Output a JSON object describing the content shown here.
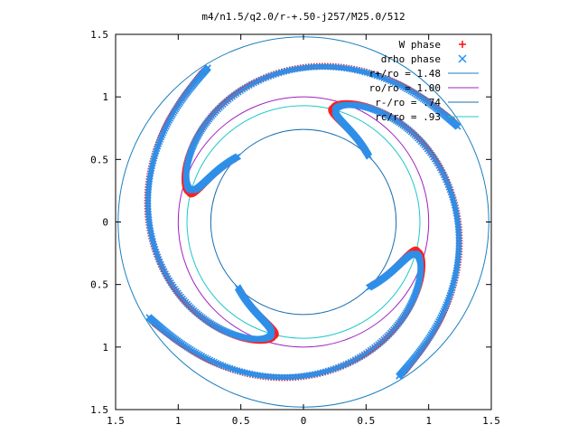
{
  "chart_data": {
    "type": "scatter",
    "title": "m4/n1.5/q2.0/r-+.50-j257/M25.0/512",
    "xlim": [
      -1.5,
      1.5
    ],
    "ylim": [
      -1.5,
      1.5
    ],
    "x_ticks": [
      -1.5,
      -1,
      -0.5,
      0,
      0.5,
      1,
      1.5
    ],
    "x_tick_labels": [
      "1.5",
      "1",
      "0.5",
      "0",
      "0.5",
      "1",
      "1.5"
    ],
    "y_ticks": [
      1.5,
      1,
      0.5,
      0,
      -0.5,
      -1,
      -1.5
    ],
    "y_tick_labels": [
      "1.5",
      "1",
      "0.5",
      "0",
      "0.5",
      "1",
      "1.5"
    ],
    "grid": false,
    "legend_position": "top-right",
    "legend": [
      {
        "label": "W phase",
        "marker": "+",
        "color": "#ff0000"
      },
      {
        "label": "drho phase",
        "marker": "x",
        "color": "#1e90ff"
      },
      {
        "label": "r+/ro = 1.48",
        "marker": "line",
        "color": "#1a7fc0"
      },
      {
        "label": "ro/ro = 1.00",
        "marker": "line",
        "color": "#a020c0"
      },
      {
        "label": "r-/ro = .74",
        "marker": "line",
        "color": "#1a6fb0"
      },
      {
        "label": "rc/ro = .93",
        "marker": "line",
        "color": "#20c8c8"
      }
    ],
    "circles": [
      {
        "name": "r+/ro",
        "radius": 1.48,
        "color": "#1a7fc0"
      },
      {
        "name": "ro/ro",
        "radius": 1.0,
        "color": "#a020c0"
      },
      {
        "name": "r-/ro",
        "radius": 0.74,
        "color": "#1a6fb0"
      },
      {
        "name": "rc/ro",
        "radius": 0.93,
        "color": "#20c8c8"
      }
    ],
    "series": [
      {
        "name": "W phase",
        "color": "#ff2020",
        "arms": 4,
        "r_inner": 0.74,
        "r_outer": 1.45,
        "rotation_deg": 47
      },
      {
        "name": "drho phase",
        "color": "#2f8fe8",
        "arms": 4,
        "r_inner": 0.74,
        "r_outer": 1.45,
        "rotation_deg": 45
      }
    ]
  }
}
